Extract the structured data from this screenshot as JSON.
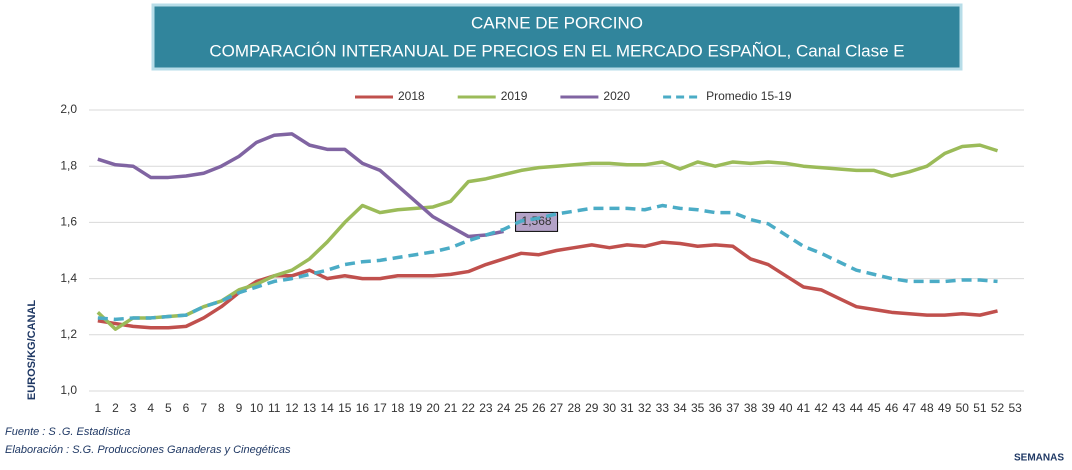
{
  "chart_data": {
    "type": "line",
    "title": "CARNE DE PORCINO",
    "subtitle": "COMPARACIÓN INTERANUAL DE PRECIOS EN EL MERCADO ESPAÑOL, Canal Clase E",
    "y_label": "EUROS/KG/CANAL",
    "x_label": "SEMANAS",
    "source": "Fuente :  S .G. Estadística",
    "credit": "Elaboración : S.G. Producciones Ganaderas y Cinegéticas",
    "categories": [
      1,
      2,
      3,
      4,
      5,
      6,
      7,
      8,
      9,
      10,
      11,
      12,
      13,
      14,
      15,
      16,
      17,
      18,
      19,
      20,
      21,
      22,
      23,
      24,
      25,
      26,
      27,
      28,
      29,
      30,
      31,
      32,
      33,
      34,
      35,
      36,
      37,
      38,
      39,
      40,
      41,
      42,
      43,
      44,
      45,
      46,
      47,
      48,
      49,
      50,
      51,
      52,
      53
    ],
    "ylim": [
      1.0,
      2.0
    ],
    "yticks": [
      {
        "value": 1.0,
        "label": "1,0"
      },
      {
        "value": 1.2,
        "label": "1,2"
      },
      {
        "value": 1.4,
        "label": "1,4"
      },
      {
        "value": 1.6,
        "label": "1,6"
      },
      {
        "value": 1.8,
        "label": "1,8"
      },
      {
        "value": 2.0,
        "label": "2,0"
      }
    ],
    "grid": true,
    "legend": "top",
    "series": [
      {
        "name": "2018",
        "color": "#c0504d",
        "dashed": false,
        "values": [
          1.25,
          1.24,
          1.23,
          1.225,
          1.225,
          1.23,
          1.26,
          1.3,
          1.35,
          1.39,
          1.41,
          1.41,
          1.43,
          1.4,
          1.41,
          1.4,
          1.4,
          1.41,
          1.41,
          1.41,
          1.415,
          1.425,
          1.45,
          1.47,
          1.49,
          1.485,
          1.5,
          1.51,
          1.52,
          1.51,
          1.52,
          1.515,
          1.53,
          1.525,
          1.515,
          1.52,
          1.515,
          1.47,
          1.45,
          1.41,
          1.37,
          1.36,
          1.33,
          1.3,
          1.29,
          1.28,
          1.275,
          1.27,
          1.27,
          1.275,
          1.27,
          1.285,
          null
        ]
      },
      {
        "name": "2019",
        "color": "#9bbb59",
        "dashed": false,
        "values": [
          1.28,
          1.22,
          1.26,
          1.26,
          1.265,
          1.27,
          1.3,
          1.32,
          1.36,
          1.38,
          1.41,
          1.43,
          1.47,
          1.53,
          1.6,
          1.66,
          1.635,
          1.645,
          1.65,
          1.655,
          1.675,
          1.745,
          1.755,
          1.77,
          1.785,
          1.795,
          1.8,
          1.805,
          1.81,
          1.81,
          1.805,
          1.805,
          1.815,
          1.79,
          1.815,
          1.8,
          1.815,
          1.81,
          1.815,
          1.81,
          1.8,
          1.795,
          1.79,
          1.785,
          1.785,
          1.765,
          1.78,
          1.8,
          1.845,
          1.87,
          1.875,
          1.855,
          null
        ]
      },
      {
        "name": "2020",
        "color": "#8064a2",
        "dashed": false,
        "values": [
          1.825,
          1.805,
          1.8,
          1.76,
          1.76,
          1.765,
          1.775,
          1.8,
          1.835,
          1.885,
          1.91,
          1.915,
          1.875,
          1.86,
          1.86,
          1.81,
          1.785,
          1.73,
          1.675,
          1.62,
          1.585,
          1.55,
          1.555,
          1.568,
          null,
          null,
          null,
          null,
          null,
          null,
          null,
          null,
          null,
          null,
          null,
          null,
          null,
          null,
          null,
          null,
          null,
          null,
          null,
          null,
          null,
          null,
          null,
          null,
          null,
          null,
          null,
          null,
          null
        ],
        "value_labels": [
          null,
          null,
          null,
          null,
          null,
          null,
          null,
          null,
          null,
          null,
          null,
          null,
          null,
          null,
          null,
          null,
          null,
          null,
          null,
          null,
          null,
          null,
          null,
          "1,568",
          null,
          null,
          null,
          null,
          null,
          null,
          null,
          null,
          null,
          null,
          null,
          null,
          null,
          null,
          null,
          null,
          null,
          null,
          null,
          null,
          null,
          null,
          null,
          null,
          null,
          null,
          null,
          null,
          null
        ]
      },
      {
        "name": "Promedio 15-19",
        "color": "#4bacc6",
        "dashed": true,
        "values": [
          1.26,
          1.255,
          1.26,
          1.26,
          1.265,
          1.27,
          1.3,
          1.32,
          1.35,
          1.37,
          1.39,
          1.4,
          1.415,
          1.43,
          1.45,
          1.46,
          1.465,
          1.475,
          1.485,
          1.495,
          1.51,
          1.535,
          1.555,
          1.575,
          1.605,
          1.615,
          1.63,
          1.64,
          1.65,
          1.65,
          1.65,
          1.645,
          1.66,
          1.65,
          1.645,
          1.635,
          1.635,
          1.61,
          1.595,
          1.555,
          1.515,
          1.49,
          1.46,
          1.43,
          1.415,
          1.4,
          1.39,
          1.39,
          1.39,
          1.395,
          1.395,
          1.39,
          null
        ]
      }
    ]
  }
}
